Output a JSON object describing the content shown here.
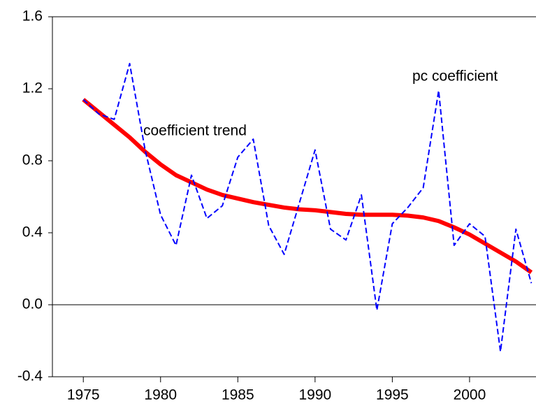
{
  "chart_data": {
    "type": "line",
    "x": [
      1975,
      1976,
      1977,
      1978,
      1979,
      1980,
      1981,
      1982,
      1983,
      1984,
      1985,
      1986,
      1987,
      1988,
      1989,
      1990,
      1991,
      1992,
      1993,
      1994,
      1995,
      1996,
      1997,
      1998,
      1999,
      2000,
      2001,
      2002,
      2003,
      2004
    ],
    "series": [
      {
        "name": "pc coefficient",
        "color": "#0000ff",
        "dashed": true,
        "values": [
          1.14,
          1.06,
          1.03,
          1.34,
          0.86,
          0.5,
          0.33,
          0.72,
          0.48,
          0.55,
          0.82,
          0.92,
          0.44,
          0.28,
          0.57,
          0.86,
          0.42,
          0.36,
          0.61,
          -0.03,
          0.45,
          0.54,
          0.65,
          1.19,
          0.33,
          0.45,
          0.38,
          -0.26,
          0.42,
          0.12
        ]
      },
      {
        "name": "coefficient trend",
        "color": "#ff0000",
        "dashed": false,
        "values": [
          1.14,
          1.07,
          1.0,
          0.93,
          0.85,
          0.78,
          0.72,
          0.68,
          0.64,
          0.61,
          0.59,
          0.57,
          0.555,
          0.54,
          0.53,
          0.525,
          0.515,
          0.505,
          0.5,
          0.5,
          0.5,
          0.495,
          0.485,
          0.465,
          0.43,
          0.39,
          0.34,
          0.29,
          0.24,
          0.18
        ]
      }
    ],
    "xlim": [
      1973,
      2004.3
    ],
    "xticks": [
      1975,
      1980,
      1985,
      1990,
      1995,
      2000
    ],
    "ylim": [
      -0.4,
      1.6
    ],
    "yticks": [
      -0.4,
      {
        "value": 0,
        "label": "0.0"
      },
      0.4,
      0.8,
      1.2,
      1.6
    ],
    "grid": false
  }
}
